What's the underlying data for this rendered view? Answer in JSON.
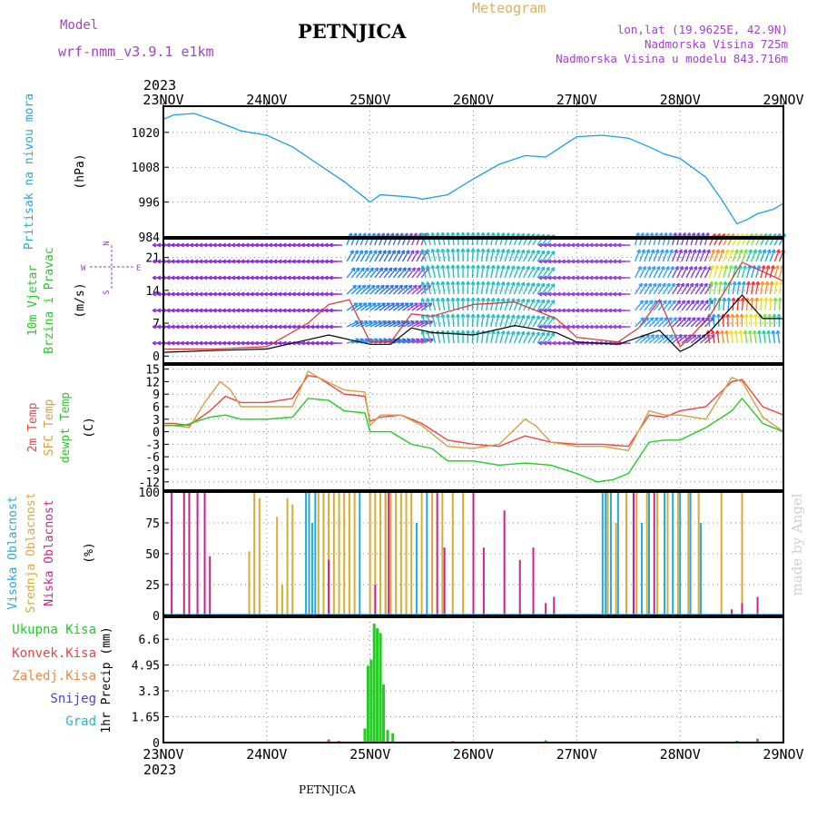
{
  "header": {
    "model_label": "Model",
    "model_run": "wrf-nmm_v3.9.1 e1km",
    "location": "PETNJICA",
    "product": "Meteogram",
    "coords": "lon,lat (19.9625E, 42.9N)",
    "elevation": "Nadmorska Visina 725m",
    "model_elevation": "Nadmorska Visina u modelu 843.716m",
    "year_top": "2023",
    "year_bottom": "2023",
    "footer_location": "PETNJICA",
    "watermark": "made by Angel"
  },
  "colors": {
    "pressure": "#1aa0e6",
    "temp2m": "#ee4444",
    "sfc_temp": "#d4a040",
    "dewpt": "#22cc22",
    "cloud_high": "#22aadd",
    "cloud_mid": "#ddaa33",
    "cloud_low": "#cc2288",
    "rain_total": "#22cc22",
    "rain_conv": "#ee4444",
    "freezing": "#ee8844",
    "snow": "#4444dd",
    "hail": "#22bbbb",
    "wind_label": "#22cc22",
    "label_cyan": "#22aadd",
    "label_purple": "#a040d0",
    "label_magenta": "#cc2288"
  },
  "chart_data": [
    {
      "type": "line",
      "panel": "pressure",
      "ylabel_text": "Pritisak na nivou mora",
      "unit": "(hPa)",
      "ylim": [
        984,
        1029
      ],
      "yticks": [
        984,
        996,
        1008,
        1020
      ],
      "x_dates": [
        "23NOV",
        "24NOV",
        "25NOV",
        "26NOV",
        "27NOV",
        "28NOV",
        "29NOV"
      ],
      "grid": true,
      "series": [
        {
          "x": [
            0,
            0.1,
            0.3,
            0.5,
            0.75,
            1.0,
            1.25,
            1.5,
            1.75,
            1.95,
            2.0,
            2.1,
            2.3,
            2.45,
            2.5,
            2.75,
            3.0,
            3.25,
            3.5,
            3.7,
            3.85,
            4.0,
            4.25,
            4.5,
            4.7,
            4.85,
            5.0,
            5.25,
            5.4,
            5.55,
            5.65,
            5.75,
            5.9,
            6.0
          ],
          "values": [
            1024.5,
            1026,
            1026.5,
            1024,
            1020.5,
            1019,
            1015,
            1009,
            1003,
            997.5,
            996,
            998.5,
            998,
            997.5,
            997,
            998.5,
            1004,
            1009,
            1012,
            1011.5,
            1015,
            1018.5,
            1019,
            1018,
            1015,
            1012.5,
            1011,
            1004.5,
            997,
            988.5,
            990,
            992,
            993.5,
            995.5
          ]
        }
      ]
    },
    {
      "type": "line",
      "panel": "wind",
      "ylabel_text": [
        "10m Vjetar",
        "Brzina i Pravac"
      ],
      "unit": "(m/s)",
      "compass": {
        "n": "N",
        "s": "S",
        "e": "E",
        "w": "W"
      },
      "ylim": [
        -1.5,
        25
      ],
      "yticks": [
        0,
        7,
        14,
        21
      ],
      "grid": true,
      "series": [
        {
          "name_color": "black",
          "x": [
            0,
            0.5,
            1.0,
            1.4,
            1.6,
            1.8,
            2.0,
            2.2,
            2.4,
            2.6,
            3.0,
            3.4,
            3.8,
            4.0,
            4.4,
            4.6,
            4.8,
            5.0,
            5.1,
            5.3,
            5.6,
            5.8,
            6.0
          ],
          "values": [
            0.8,
            1.2,
            1.5,
            3.5,
            4.5,
            3.5,
            2.5,
            2.5,
            6,
            5,
            4.5,
            6.5,
            5,
            3,
            2.5,
            4,
            5.5,
            1,
            2,
            5.5,
            13,
            8,
            8
          ]
        },
        {
          "name_color": "red gusts",
          "x": [
            0,
            0.5,
            1.0,
            1.4,
            1.6,
            1.8,
            2.0,
            2.2,
            2.4,
            2.6,
            3.0,
            3.4,
            3.8,
            4.0,
            4.4,
            4.6,
            4.8,
            5.0,
            5.1,
            5.3,
            5.6,
            5.8,
            6.0
          ],
          "values": [
            1.5,
            1.5,
            2,
            7,
            11,
            12,
            3,
            3,
            9,
            8.5,
            11,
            11.5,
            8,
            4,
            3,
            6,
            12,
            2,
            4,
            9,
            20,
            18,
            16
          ]
        }
      ]
    },
    {
      "type": "line",
      "panel": "temperature",
      "ylabel_text": [
        "2m Temp",
        "SFC Temp",
        "dewpt Temp"
      ],
      "unit": "(C)",
      "ylim": [
        -14,
        16
      ],
      "yticks": [
        -12,
        -9,
        -6,
        -3,
        0,
        3,
        6,
        9,
        12,
        15
      ],
      "grid": true,
      "series": [
        {
          "name": "2m Temp",
          "x": [
            0,
            0.1,
            0.25,
            0.45,
            0.6,
            0.75,
            1.0,
            1.25,
            1.4,
            1.5,
            1.75,
            1.95,
            2.0,
            2.1,
            2.3,
            2.5,
            2.75,
            3.0,
            3.25,
            3.5,
            3.75,
            4.0,
            4.25,
            4.5,
            4.7,
            4.85,
            5.0,
            5.25,
            5.5,
            5.6,
            5.8,
            6.0
          ],
          "values": [
            2,
            2,
            1.5,
            5,
            8.5,
            7,
            7,
            8,
            13.5,
            13,
            9,
            8.5,
            2.5,
            3.5,
            4,
            2,
            -2,
            -3,
            -3.5,
            -1,
            -2.5,
            -3,
            -3,
            -3.5,
            4,
            3.5,
            5,
            6,
            12,
            12.5,
            6,
            4
          ]
        },
        {
          "name": "SFC Temp",
          "x": [
            0,
            0.1,
            0.25,
            0.4,
            0.55,
            0.65,
            0.75,
            1.0,
            1.25,
            1.4,
            1.5,
            1.75,
            1.95,
            2.0,
            2.1,
            2.3,
            2.5,
            2.75,
            3.0,
            3.25,
            3.5,
            3.6,
            3.75,
            4.0,
            4.25,
            4.5,
            4.7,
            4.85,
            5.0,
            5.25,
            5.5,
            5.6,
            5.8,
            6.0
          ],
          "values": [
            1.5,
            1.5,
            1,
            7,
            12,
            10,
            6,
            6,
            6,
            14.5,
            13,
            10,
            9.5,
            1.5,
            4,
            4,
            1.5,
            -3.5,
            -4,
            -3,
            3,
            1.5,
            -2.5,
            -3.5,
            -3.5,
            -4.5,
            5,
            4,
            4,
            3,
            13,
            12,
            3.5,
            0
          ]
        },
        {
          "name": "dewpt Temp",
          "x": [
            0,
            0.2,
            0.45,
            0.6,
            0.75,
            1.0,
            1.25,
            1.4,
            1.6,
            1.75,
            1.95,
            2.0,
            2.2,
            2.4,
            2.6,
            2.75,
            3.0,
            3.25,
            3.5,
            3.75,
            4.0,
            4.2,
            4.35,
            4.5,
            4.7,
            4.85,
            5.0,
            5.25,
            5.5,
            5.6,
            5.8,
            6.0
          ],
          "values": [
            1.5,
            1.5,
            3.5,
            4,
            3,
            3,
            3.5,
            8,
            7.5,
            5,
            4.5,
            0,
            0,
            -3,
            -4,
            -7,
            -7,
            -8,
            -7.5,
            -8,
            -10,
            -12,
            -11.5,
            -10,
            -2.5,
            -2,
            -2,
            1,
            5,
            8,
            2,
            0
          ]
        }
      ]
    },
    {
      "type": "bar",
      "panel": "clouds",
      "ylabel_text": [
        "Visoka Oblacnost",
        "Srednja Oblacnost",
        "Niska Oblacnost"
      ],
      "unit": "(%)",
      "ylim": [
        0,
        100
      ],
      "yticks": [
        0,
        25,
        50,
        75,
        100
      ],
      "grid": true,
      "series": [
        {
          "name": "Visoka Oblacnost",
          "x": [
            1.38,
            1.41,
            1.44,
            1.47,
            1.9,
            2.15,
            2.45,
            2.55,
            4.25,
            4.28,
            4.33,
            4.4,
            4.55,
            4.63,
            4.7,
            4.85,
            4.93,
            5.0,
            5.1,
            5.2
          ],
          "values": [
            100,
            100,
            75,
            100,
            100,
            100,
            75,
            100,
            100,
            100,
            100,
            100,
            100,
            75,
            100,
            100,
            100,
            100,
            100,
            75
          ]
        },
        {
          "name": "Srednja Oblacnost",
          "x": [
            0.83,
            0.88,
            0.93,
            1.1,
            1.15,
            1.2,
            1.25,
            1.5,
            1.55,
            1.6,
            1.65,
            1.7,
            1.75,
            1.8,
            1.85,
            2.0,
            2.05,
            2.1,
            2.15,
            2.2,
            2.25,
            2.3,
            2.35,
            2.4,
            2.5,
            2.6,
            2.7,
            2.8,
            2.9,
            3.0,
            4.3,
            4.38,
            4.48,
            4.58,
            4.68,
            4.78,
            4.88,
            4.98,
            5.08,
            5.18,
            5.4,
            5.6,
            6.0
          ],
          "values": [
            52,
            100,
            95,
            80,
            25,
            95,
            90,
            100,
            100,
            100,
            100,
            100,
            100,
            100,
            100,
            100,
            100,
            100,
            100,
            100,
            100,
            100,
            100,
            100,
            100,
            100,
            100,
            100,
            100,
            100,
            100,
            75,
            100,
            100,
            100,
            100,
            100,
            100,
            100,
            100,
            100,
            100,
            100
          ]
        },
        {
          "name": "Niska Oblacnost",
          "x": [
            0.08,
            0.2,
            0.25,
            0.33,
            0.4,
            0.45,
            1.6,
            2.05,
            2.18,
            2.65,
            2.72,
            3.0,
            3.1,
            3.3,
            3.45,
            3.58,
            3.7,
            3.78,
            4.55,
            4.75,
            5.5,
            5.6,
            5.75
          ],
          "values": [
            100,
            100,
            100,
            100,
            100,
            48,
            45,
            25,
            100,
            100,
            55,
            100,
            55,
            85,
            45,
            55,
            10,
            15,
            100,
            100,
            5,
            10,
            15
          ]
        }
      ]
    },
    {
      "type": "bar",
      "panel": "precipitation",
      "legend": [
        "Ukupna Kisa",
        "Konvek.Kisa",
        "Zaledj.Kisa",
        "Snijeg",
        "Grad"
      ],
      "unit": "1hr Precip (mm)",
      "ylim": [
        0,
        8
      ],
      "yticks": [
        0,
        1.65,
        3.3,
        4.95,
        6.6
      ],
      "grid": true,
      "series": [
        {
          "name": "Ukupna Kisa",
          "x": [
            1.95,
            1.98,
            2.01,
            2.04,
            2.07,
            2.1,
            2.13,
            2.17,
            2.22,
            3.7,
            5.55,
            5.75
          ],
          "values": [
            0.9,
            4.9,
            5.3,
            7.6,
            7.3,
            7.0,
            3.7,
            0.8,
            0.6,
            0.15,
            0.12,
            0.25
          ]
        },
        {
          "name": "Konvek.Kisa",
          "x": [
            1.6,
            1.7,
            2.8,
            5.45,
            5.8
          ],
          "values": [
            0.2,
            0.1,
            0.1,
            0.05,
            0.05
          ]
        }
      ]
    }
  ]
}
